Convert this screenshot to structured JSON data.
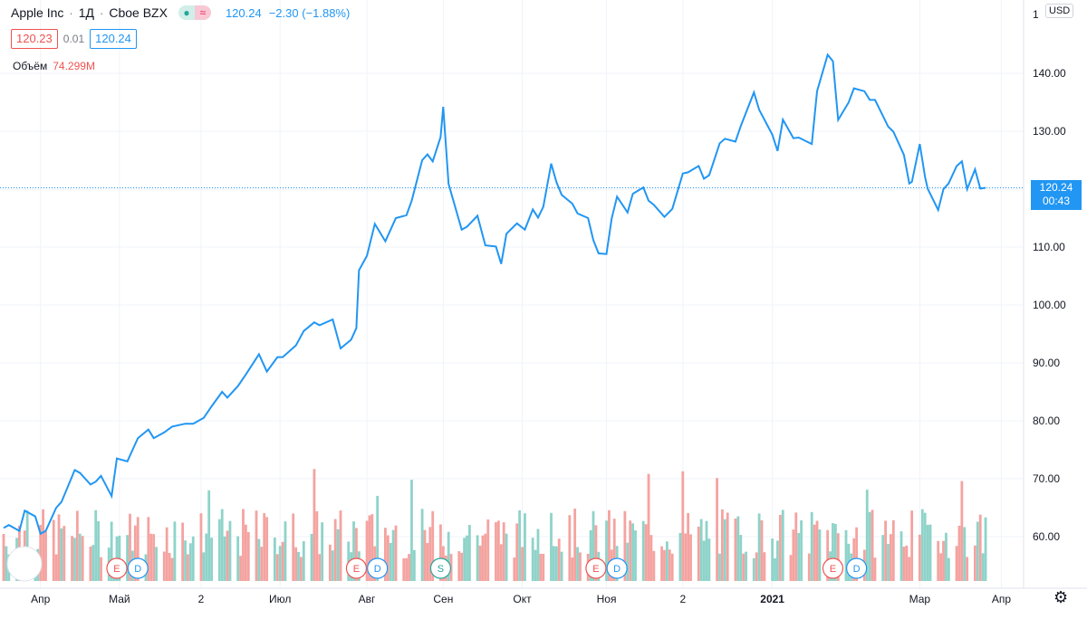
{
  "legend": {
    "symbol": "Apple Inc",
    "interval": "1Д",
    "exchange": "Cboe BZX",
    "last": "120.24",
    "change": "−2.30 (−1.88%)",
    "bid": "120.23",
    "spread": "0.01",
    "ask": "120.24",
    "volume_label": "Объём",
    "volume_value": "74.299M"
  },
  "price_scale": {
    "currency": "USD",
    "last_price_label": "120.24",
    "countdown": "00:43",
    "top_tick": "1"
  },
  "colors": {
    "line": "#2196f3",
    "volume_up": "#8ed3c9",
    "volume_down": "#f4a3a0",
    "grid": "#f0f3fa",
    "earnings_marker": "#ef5350",
    "dividend_marker": "#2196f3",
    "split_marker": "#26a69a"
  },
  "markers": [
    {
      "type": "E",
      "date": "2020-04-30"
    },
    {
      "type": "D",
      "date": "2020-05-08"
    },
    {
      "type": "E",
      "date": "2020-07-30"
    },
    {
      "type": "D",
      "date": "2020-08-07"
    },
    {
      "type": "S",
      "date": "2020-08-31"
    },
    {
      "type": "E",
      "date": "2020-10-29"
    },
    {
      "type": "D",
      "date": "2020-11-06"
    },
    {
      "type": "E",
      "date": "2021-01-27"
    },
    {
      "type": "D",
      "date": "2021-02-05"
    }
  ],
  "chart_data": {
    "type": "line",
    "title": "Apple Inc",
    "ylim": [
      55,
      150
    ],
    "y_ticks": [
      60,
      70,
      80,
      90,
      100,
      110,
      120,
      130,
      140
    ],
    "y_tick_labels": [
      "60.00",
      "70.00",
      "80.00",
      "90.00",
      "100.00",
      "110.00",
      "120.00",
      "130.00",
      "140.00"
    ],
    "x_ticks": [
      {
        "label": "Апр",
        "date": "2020-04-01"
      },
      {
        "label": "Май",
        "date": "2020-05-01"
      },
      {
        "label": "2",
        "date": "2020-06-01"
      },
      {
        "label": "Июл",
        "date": "2020-07-01"
      },
      {
        "label": "Авг",
        "date": "2020-08-03"
      },
      {
        "label": "Сен",
        "date": "2020-09-01"
      },
      {
        "label": "Окт",
        "date": "2020-10-01"
      },
      {
        "label": "Ноя",
        "date": "2020-11-02"
      },
      {
        "label": "2",
        "date": "2020-12-01"
      },
      {
        "label": "2021",
        "date": "2021-01-04",
        "bold": true
      },
      {
        "label": "Мар",
        "date": "2021-03-01"
      },
      {
        "label": "Апр",
        "date": "2021-04-01"
      }
    ],
    "x_start": "2020-03-18",
    "x_end": "2021-04-06",
    "series": [
      {
        "kind": "close",
        "points": [
          [
            "2020-03-18",
            61.5
          ],
          [
            "2020-03-20",
            62.0
          ],
          [
            "2020-03-24",
            61.0
          ],
          [
            "2020-03-26",
            64.5
          ],
          [
            "2020-03-30",
            63.5
          ],
          [
            "2020-04-01",
            60.5
          ],
          [
            "2020-04-03",
            61.0
          ],
          [
            "2020-04-07",
            65.0
          ],
          [
            "2020-04-09",
            66.0
          ],
          [
            "2020-04-14",
            71.5
          ],
          [
            "2020-04-16",
            71.0
          ],
          [
            "2020-04-20",
            69.0
          ],
          [
            "2020-04-22",
            69.5
          ],
          [
            "2020-04-24",
            70.5
          ],
          [
            "2020-04-28",
            67.0
          ],
          [
            "2020-04-30",
            73.5
          ],
          [
            "2020-05-04",
            73.0
          ],
          [
            "2020-05-06",
            75.0
          ],
          [
            "2020-05-08",
            77.0
          ],
          [
            "2020-05-12",
            78.5
          ],
          [
            "2020-05-14",
            77.0
          ],
          [
            "2020-05-18",
            78.0
          ],
          [
            "2020-05-21",
            79.0
          ],
          [
            "2020-05-26",
            79.5
          ],
          [
            "2020-05-29",
            79.5
          ],
          [
            "2020-06-02",
            80.5
          ],
          [
            "2020-06-05",
            82.5
          ],
          [
            "2020-06-09",
            85.0
          ],
          [
            "2020-06-11",
            84.0
          ],
          [
            "2020-06-15",
            86.0
          ],
          [
            "2020-06-18",
            88.0
          ],
          [
            "2020-06-23",
            91.5
          ],
          [
            "2020-06-26",
            88.5
          ],
          [
            "2020-06-30",
            91.0
          ],
          [
            "2020-07-02",
            91.0
          ],
          [
            "2020-07-07",
            93.0
          ],
          [
            "2020-07-10",
            95.5
          ],
          [
            "2020-07-14",
            97.0
          ],
          [
            "2020-07-16",
            96.5
          ],
          [
            "2020-07-21",
            97.5
          ],
          [
            "2020-07-24",
            92.5
          ],
          [
            "2020-07-28",
            94.0
          ],
          [
            "2020-07-30",
            96.0
          ],
          [
            "2020-07-31",
            106.0
          ],
          [
            "2020-08-03",
            108.5
          ],
          [
            "2020-08-06",
            114.0
          ],
          [
            "2020-08-10",
            111.0
          ],
          [
            "2020-08-12",
            113.0
          ],
          [
            "2020-08-14",
            115.0
          ],
          [
            "2020-08-18",
            115.5
          ],
          [
            "2020-08-20",
            118.0
          ],
          [
            "2020-08-24",
            125.0
          ],
          [
            "2020-08-26",
            126.0
          ],
          [
            "2020-08-28",
            124.8
          ],
          [
            "2020-08-31",
            129.0
          ],
          [
            "2020-09-01",
            134.2
          ],
          [
            "2020-09-03",
            120.9
          ],
          [
            "2020-09-08",
            113.0
          ],
          [
            "2020-09-10",
            113.5
          ],
          [
            "2020-09-14",
            115.4
          ],
          [
            "2020-09-17",
            110.3
          ],
          [
            "2020-09-21",
            110.1
          ],
          [
            "2020-09-23",
            107.1
          ],
          [
            "2020-09-25",
            112.3
          ],
          [
            "2020-09-29",
            114.1
          ],
          [
            "2020-10-02",
            113.0
          ],
          [
            "2020-10-05",
            116.5
          ],
          [
            "2020-10-07",
            115.1
          ],
          [
            "2020-10-09",
            116.97
          ],
          [
            "2020-10-12",
            124.4
          ],
          [
            "2020-10-14",
            121.2
          ],
          [
            "2020-10-16",
            119.0
          ],
          [
            "2020-10-20",
            117.5
          ],
          [
            "2020-10-22",
            115.8
          ],
          [
            "2020-10-26",
            115.0
          ],
          [
            "2020-10-28",
            111.2
          ],
          [
            "2020-10-30",
            108.9
          ],
          [
            "2020-11-02",
            108.8
          ],
          [
            "2020-11-04",
            114.95
          ],
          [
            "2020-11-06",
            118.7
          ],
          [
            "2020-11-10",
            115.97
          ],
          [
            "2020-11-12",
            119.2
          ],
          [
            "2020-11-16",
            120.3
          ],
          [
            "2020-11-18",
            118.0
          ],
          [
            "2020-11-20",
            117.3
          ],
          [
            "2020-11-24",
            115.2
          ],
          [
            "2020-11-27",
            116.6
          ],
          [
            "2020-12-01",
            122.7
          ],
          [
            "2020-12-03",
            122.9
          ],
          [
            "2020-12-07",
            124.0
          ],
          [
            "2020-12-09",
            121.8
          ],
          [
            "2020-12-11",
            122.4
          ],
          [
            "2020-12-15",
            127.9
          ],
          [
            "2020-12-17",
            128.7
          ],
          [
            "2020-12-21",
            128.2
          ],
          [
            "2020-12-23",
            130.9
          ],
          [
            "2020-12-28",
            136.7
          ],
          [
            "2020-12-30",
            133.7
          ],
          [
            "2021-01-04",
            129.4
          ],
          [
            "2021-01-06",
            126.6
          ],
          [
            "2021-01-08",
            132.0
          ],
          [
            "2021-01-12",
            128.8
          ],
          [
            "2021-01-14",
            128.9
          ],
          [
            "2021-01-19",
            127.8
          ],
          [
            "2021-01-21",
            136.9
          ],
          [
            "2021-01-25",
            143.2
          ],
          [
            "2021-01-27",
            142.1
          ],
          [
            "2021-01-29",
            131.96
          ],
          [
            "2021-02-02",
            134.99
          ],
          [
            "2021-02-04",
            137.4
          ],
          [
            "2021-02-08",
            136.9
          ],
          [
            "2021-02-10",
            135.4
          ],
          [
            "2021-02-12",
            135.4
          ],
          [
            "2021-02-17",
            130.8
          ],
          [
            "2021-02-19",
            129.9
          ],
          [
            "2021-02-23",
            125.9
          ],
          [
            "2021-02-25",
            120.99
          ],
          [
            "2021-02-26",
            121.26
          ],
          [
            "2021-03-01",
            127.8
          ],
          [
            "2021-03-03",
            122.1
          ],
          [
            "2021-03-04",
            120.1
          ],
          [
            "2021-03-08",
            116.4
          ],
          [
            "2021-03-10",
            119.98
          ],
          [
            "2021-03-12",
            121.0
          ],
          [
            "2021-03-15",
            123.99
          ],
          [
            "2021-03-17",
            124.8
          ],
          [
            "2021-03-19",
            119.99
          ],
          [
            "2021-03-22",
            123.4
          ],
          [
            "2021-03-24",
            120.1
          ],
          [
            "2021-03-26",
            120.24
          ]
        ]
      }
    ],
    "volume_series": {
      "name": "Объём",
      "last_value": "74.299M",
      "note": "relative bar heights alternating up/down colors"
    }
  }
}
